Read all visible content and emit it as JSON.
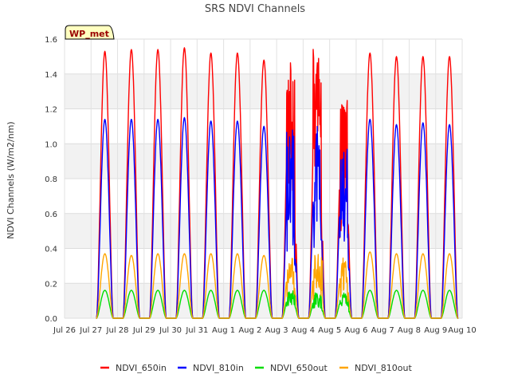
{
  "chart_data": {
    "type": "line",
    "title": "SRS NDVI Channels",
    "ylabel": "NDVI Channels (W/m2/nm)",
    "xlabel": "",
    "site_label": "WP_met",
    "ylim": [
      0,
      1.6
    ],
    "yticks": [
      "0.0",
      "0.2",
      "0.4",
      "0.6",
      "0.8",
      "1.0",
      "1.2",
      "1.4",
      "1.6"
    ],
    "xlim": [
      0,
      15
    ],
    "xticks": [
      "Jul 26",
      "Jul 27",
      "Jul 28",
      "Jul 29",
      "Jul 30",
      "Jul 31",
      "Aug 1",
      "Aug 2",
      "Aug 3",
      "Aug 4",
      "Aug 5",
      "Aug 6",
      "Aug 7",
      "Aug 8",
      "Aug 9",
      "Aug 10"
    ],
    "grid": true,
    "legend_position": "bottom",
    "days": [
      "Jul 27",
      "Jul 28",
      "Jul 29",
      "Jul 30",
      "Jul 31",
      "Aug 1",
      "Aug 2",
      "Aug 3",
      "Aug 4",
      "Aug 5",
      "Aug 6",
      "Aug 7",
      "Aug 8",
      "Aug 9"
    ],
    "series": [
      {
        "name": "NDVI_650in",
        "color": "#ff0000",
        "daily_peak": [
          1.53,
          1.54,
          1.54,
          1.55,
          1.52,
          1.52,
          1.48,
          1.5,
          1.56,
          1.28,
          1.52,
          1.5,
          1.5,
          1.5
        ]
      },
      {
        "name": "NDVI_810in",
        "color": "#0000ff",
        "daily_peak": [
          1.14,
          1.14,
          1.14,
          1.15,
          1.13,
          1.13,
          1.1,
          1.11,
          1.1,
          1.0,
          1.14,
          1.11,
          1.12,
          1.11
        ]
      },
      {
        "name": "NDVI_650out",
        "color": "#00dd00",
        "daily_peak": [
          0.16,
          0.16,
          0.16,
          0.16,
          0.16,
          0.16,
          0.16,
          0.16,
          0.15,
          0.14,
          0.16,
          0.16,
          0.16,
          0.16
        ]
      },
      {
        "name": "NDVI_810out",
        "color": "#ffa500",
        "daily_peak": [
          0.37,
          0.36,
          0.37,
          0.37,
          0.37,
          0.37,
          0.36,
          0.36,
          0.37,
          0.34,
          0.38,
          0.37,
          0.37,
          0.37
        ]
      }
    ],
    "daylight_start_hour": 5,
    "daylight_end_hour": 20
  }
}
